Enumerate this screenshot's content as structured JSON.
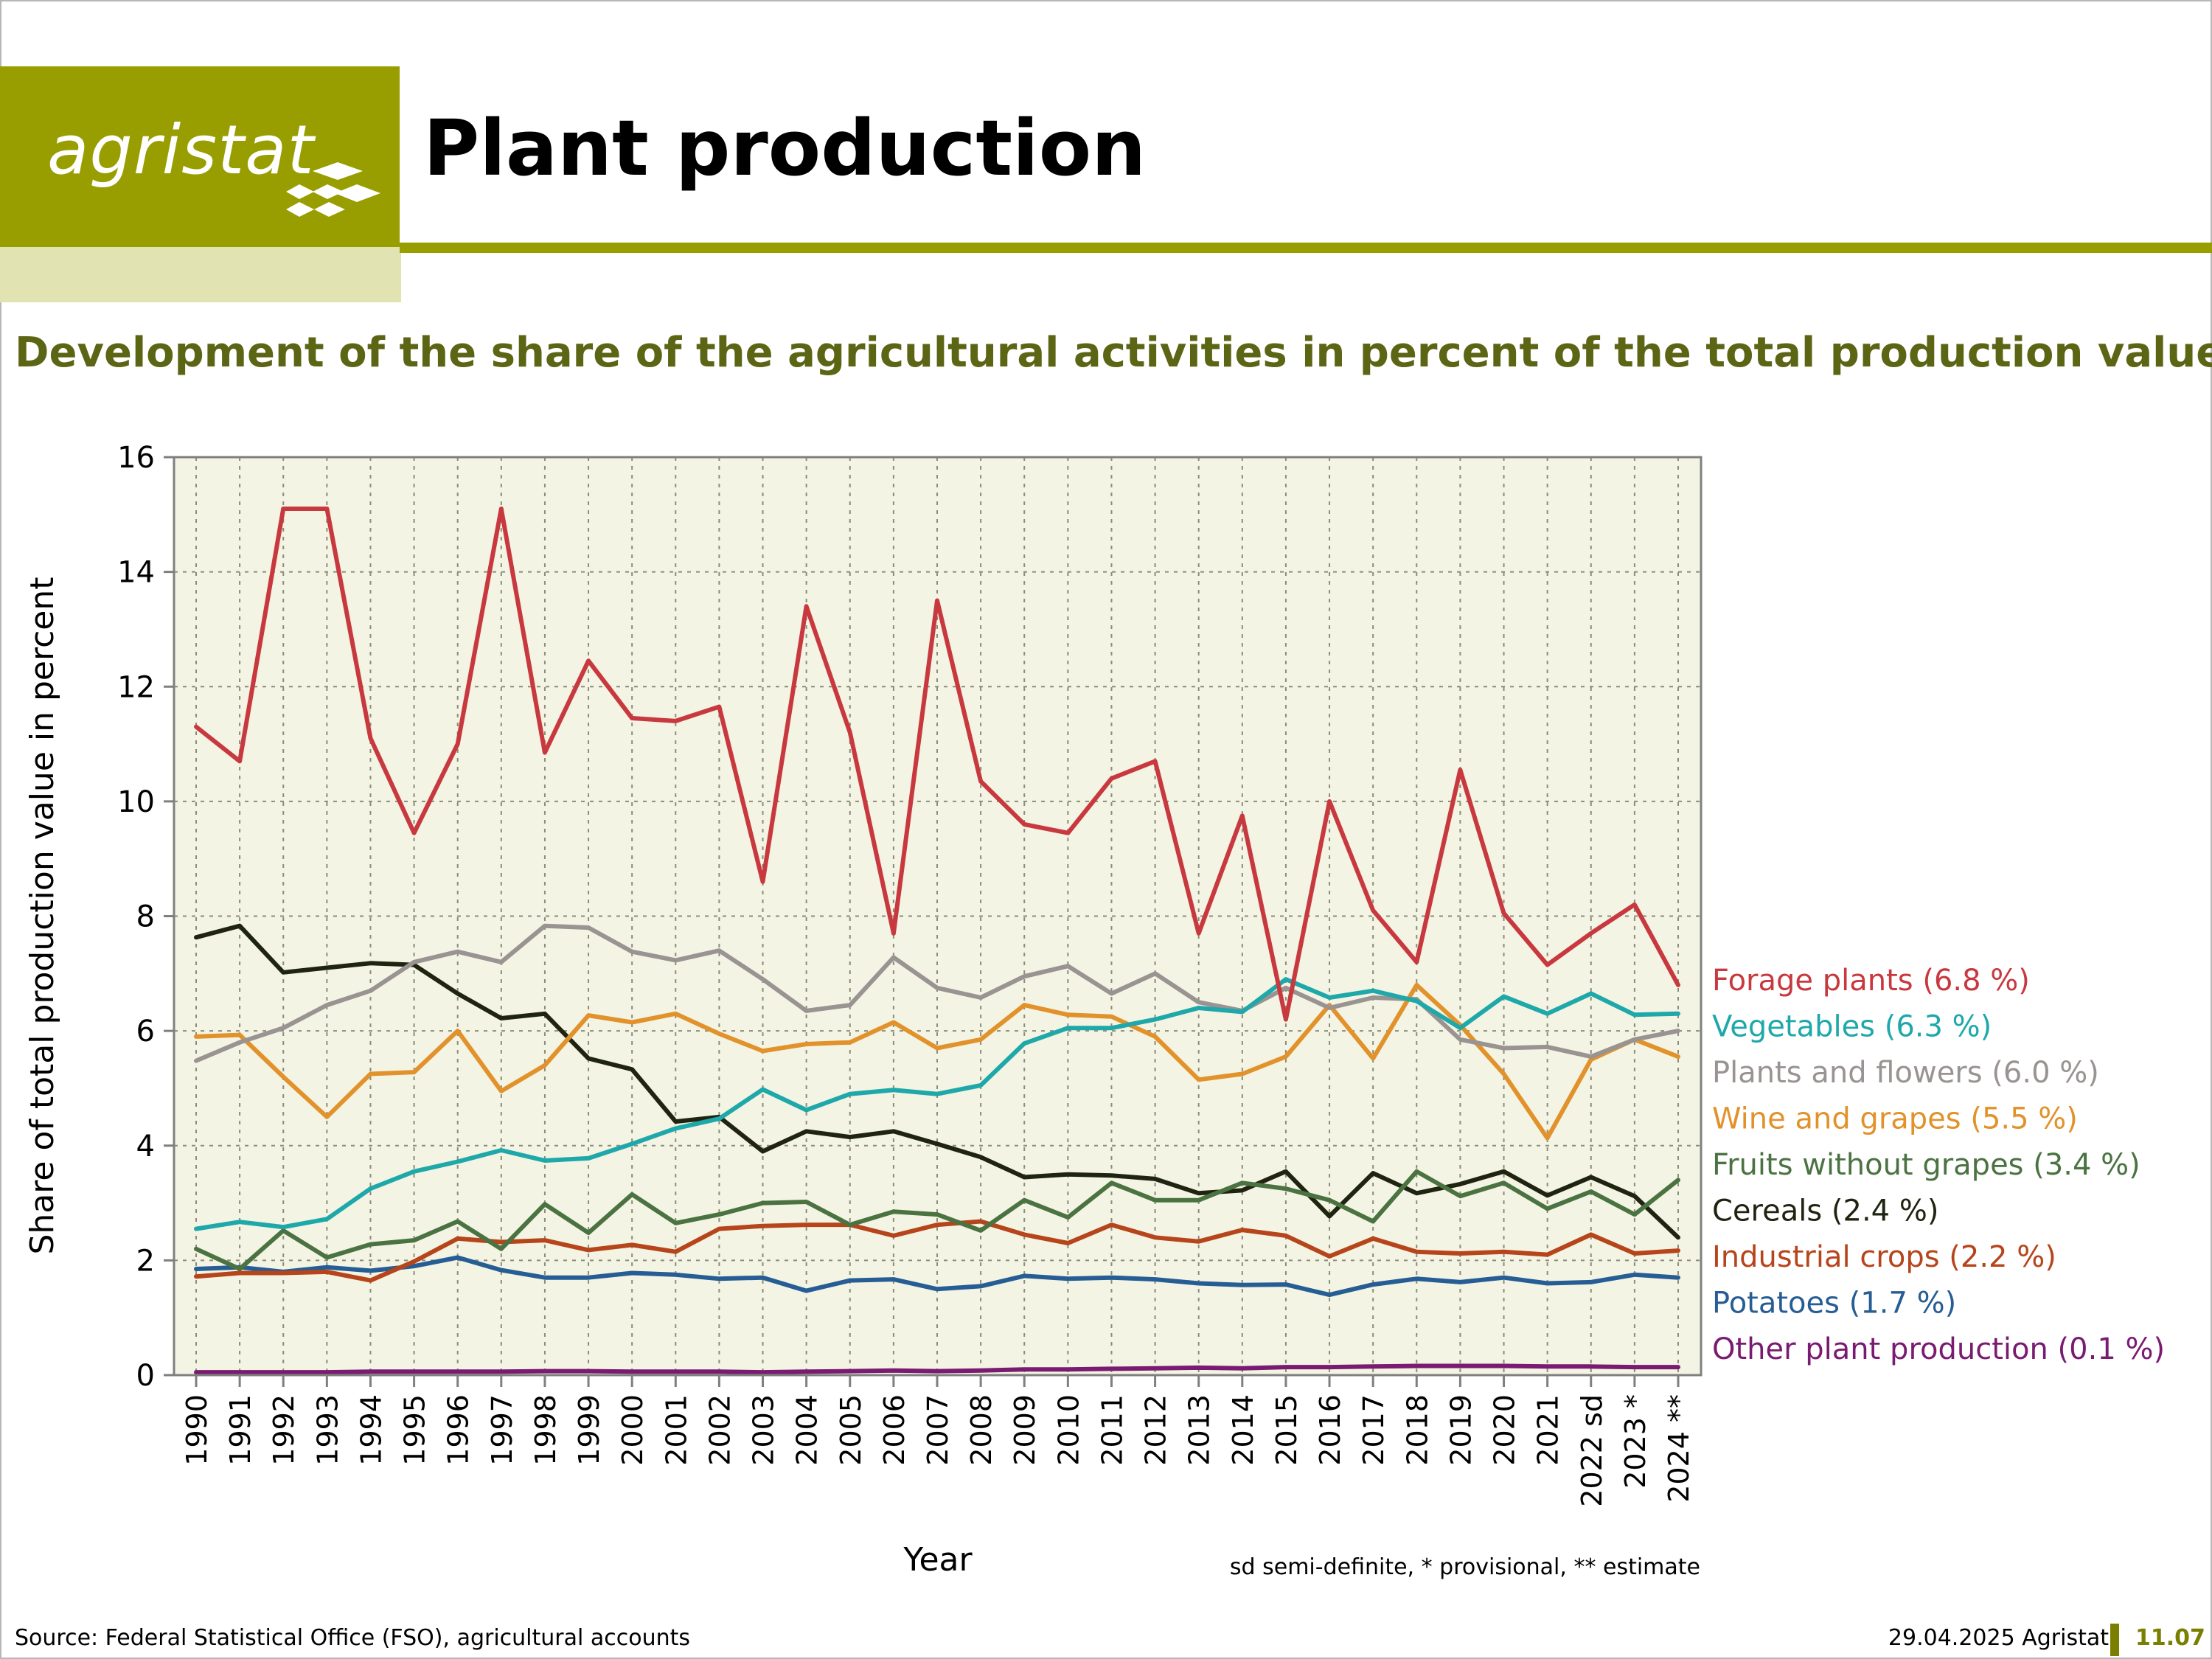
{
  "header": {
    "logo_text": "agristat",
    "page_title": "Plant production"
  },
  "footer": {
    "source": "Source: Federal Statistical Office (FSO), agricultural accounts",
    "date": "29.04.2025 Agristat",
    "page_number": "11.07"
  },
  "colors": {
    "brand_olive": "#999e00",
    "brand_light": "#e1e4b2",
    "title_olive": "#5b6514",
    "plot_background": "#f4f4e4"
  },
  "chart_data": {
    "type": "line",
    "title": "Development of the share of the agricultural activities in percent of the total production value",
    "xlabel": "Year",
    "ylabel": "Share of total production value in percent",
    "note": "sd semi-definite, * provisional, ** estimate",
    "ylim": [
      0,
      16
    ],
    "yticks": [
      "0",
      "2",
      "4",
      "6",
      "8",
      "10",
      "12",
      "14",
      "16"
    ],
    "categories": [
      "1990",
      "1991",
      "1992",
      "1993",
      "1994",
      "1995",
      "1996",
      "1997",
      "1998",
      "1999",
      "2000",
      "2001",
      "2002",
      "2003",
      "2004",
      "2005",
      "2006",
      "2007",
      "2008",
      "2009",
      "2010",
      "2011",
      "2012",
      "2013",
      "2014",
      "2015",
      "2016",
      "2017",
      "2018",
      "2019",
      "2020",
      "2021",
      "2022 sd",
      "2023 *",
      "2024 **"
    ],
    "grid": true,
    "legend_position": "right",
    "series": [
      {
        "name": "Forage plants (6.8 %)",
        "color": "#c8393f",
        "values": [
          11.3,
          10.7,
          15.1,
          15.1,
          11.1,
          9.45,
          11.0,
          15.1,
          10.85,
          12.45,
          11.45,
          11.4,
          11.65,
          8.6,
          13.4,
          11.2,
          7.7,
          13.5,
          10.35,
          9.6,
          9.45,
          10.4,
          10.7,
          7.7,
          9.75,
          6.2,
          10.0,
          8.1,
          7.2,
          10.55,
          8.05,
          7.15,
          7.7,
          8.2,
          6.8
        ]
      },
      {
        "name": "Vegetables (6.3 %)",
        "color": "#1fa8aa",
        "values": [
          2.55,
          2.67,
          2.58,
          2.72,
          3.25,
          3.55,
          3.72,
          3.92,
          3.74,
          3.78,
          4.03,
          4.3,
          4.47,
          4.98,
          4.62,
          4.9,
          4.97,
          4.9,
          5.05,
          5.78,
          6.05,
          6.05,
          6.2,
          6.4,
          6.33,
          6.9,
          6.58,
          6.7,
          6.52,
          6.05,
          6.6,
          6.3,
          6.65,
          6.28,
          6.3
        ]
      },
      {
        "name": "Plants and flowers (6.0 %)",
        "color": "#999392",
        "values": [
          5.48,
          5.8,
          6.05,
          6.45,
          6.7,
          7.2,
          7.38,
          7.2,
          7.83,
          7.8,
          7.38,
          7.23,
          7.4,
          6.9,
          6.35,
          6.45,
          7.28,
          6.75,
          6.58,
          6.95,
          7.13,
          6.65,
          7.0,
          6.5,
          6.35,
          6.75,
          6.4,
          6.58,
          6.55,
          5.85,
          5.7,
          5.72,
          5.55,
          5.85,
          6.0
        ]
      },
      {
        "name": "Wine and grapes (5.5 %)",
        "color": "#e2922b",
        "values": [
          5.9,
          5.93,
          5.2,
          4.5,
          5.25,
          5.28,
          6.0,
          4.95,
          5.4,
          6.27,
          6.15,
          6.3,
          5.95,
          5.65,
          5.77,
          5.8,
          6.15,
          5.7,
          5.85,
          6.45,
          6.28,
          6.25,
          5.9,
          5.15,
          5.25,
          5.55,
          6.45,
          5.52,
          6.8,
          6.1,
          5.25,
          4.13,
          5.5,
          5.85,
          5.55
        ]
      },
      {
        "name": "Fruits without grapes (3.4 %)",
        "color": "#4b7342",
        "values": [
          2.2,
          1.85,
          2.52,
          2.05,
          2.28,
          2.35,
          2.68,
          2.2,
          2.98,
          2.48,
          3.15,
          2.65,
          2.8,
          3.0,
          3.02,
          2.62,
          2.85,
          2.8,
          2.52,
          3.05,
          2.75,
          3.35,
          3.05,
          3.05,
          3.35,
          3.25,
          3.05,
          2.68,
          3.55,
          3.12,
          3.35,
          2.9,
          3.2,
          2.8,
          3.4
        ]
      },
      {
        "name": "Cereals (2.4 %)",
        "color": "#1f2410",
        "values": [
          7.63,
          7.83,
          7.02,
          7.1,
          7.18,
          7.15,
          6.65,
          6.22,
          6.3,
          5.52,
          5.33,
          4.42,
          4.5,
          3.9,
          4.25,
          4.15,
          4.25,
          4.03,
          3.8,
          3.45,
          3.5,
          3.48,
          3.42,
          3.17,
          3.22,
          3.55,
          2.77,
          3.52,
          3.17,
          3.33,
          3.55,
          3.13,
          3.45,
          3.12,
          2.4
        ]
      },
      {
        "name": "Industrial crops (2.2 %)",
        "color": "#b6451b",
        "values": [
          1.72,
          1.78,
          1.78,
          1.8,
          1.65,
          1.98,
          2.38,
          2.32,
          2.35,
          2.18,
          2.27,
          2.15,
          2.55,
          2.6,
          2.62,
          2.62,
          2.43,
          2.62,
          2.68,
          2.45,
          2.3,
          2.62,
          2.4,
          2.33,
          2.53,
          2.43,
          2.07,
          2.38,
          2.15,
          2.12,
          2.15,
          2.1,
          2.45,
          2.12,
          2.17
        ]
      },
      {
        "name": "Potatoes (1.7 %)",
        "color": "#265d94",
        "values": [
          1.85,
          1.88,
          1.8,
          1.88,
          1.82,
          1.9,
          2.05,
          1.83,
          1.7,
          1.7,
          1.78,
          1.75,
          1.68,
          1.7,
          1.47,
          1.65,
          1.67,
          1.5,
          1.55,
          1.73,
          1.68,
          1.7,
          1.67,
          1.6,
          1.57,
          1.58,
          1.4,
          1.58,
          1.68,
          1.62,
          1.7,
          1.6,
          1.62,
          1.75,
          1.7
        ]
      },
      {
        "name": "Other plant production (0.1 %)",
        "color": "#7a1b72",
        "values": [
          0.05,
          0.05,
          0.05,
          0.05,
          0.06,
          0.06,
          0.06,
          0.06,
          0.07,
          0.07,
          0.06,
          0.06,
          0.06,
          0.05,
          0.06,
          0.07,
          0.08,
          0.07,
          0.08,
          0.1,
          0.1,
          0.11,
          0.12,
          0.13,
          0.12,
          0.14,
          0.14,
          0.15,
          0.16,
          0.16,
          0.16,
          0.15,
          0.15,
          0.14,
          0.14
        ]
      }
    ]
  }
}
